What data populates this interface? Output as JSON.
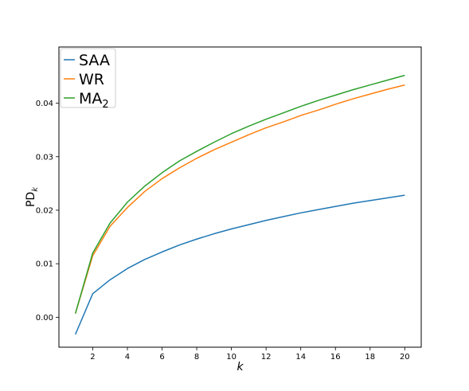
{
  "chart_data": {
    "type": "line",
    "title": "",
    "xlabel": "k",
    "ylabel": "PD",
    "ylabel_subscript": "k",
    "xlim": [
      0.05,
      20.95
    ],
    "ylim": [
      -0.0056,
      0.0505
    ],
    "xticks": [
      2,
      4,
      6,
      8,
      10,
      12,
      14,
      16,
      18,
      20
    ],
    "yticks": [
      0.0,
      0.01,
      0.02,
      0.03,
      0.04
    ],
    "ytick_labels": [
      "0.00",
      "0.01",
      "0.02",
      "0.03",
      "0.04"
    ],
    "grid": false,
    "legend_position": "top-left",
    "x": [
      1,
      2,
      3,
      4,
      5,
      6,
      7,
      8,
      9,
      10,
      11,
      12,
      13,
      14,
      15,
      16,
      17,
      18,
      19,
      20
    ],
    "series": [
      {
        "name": "SAA",
        "color": "#1f77b4",
        "values": [
          -0.0032,
          0.0044,
          0.007,
          0.0091,
          0.0108,
          0.0122,
          0.0135,
          0.0146,
          0.0156,
          0.0165,
          0.0173,
          0.0181,
          0.0188,
          0.0195,
          0.0201,
          0.0207,
          0.0213,
          0.0218,
          0.0223,
          0.0228
        ]
      },
      {
        "name": "WR",
        "color": "#ff7f0e",
        "values": [
          0.0007,
          0.0115,
          0.017,
          0.0205,
          0.0235,
          0.0259,
          0.0279,
          0.0297,
          0.0313,
          0.0327,
          0.0341,
          0.0354,
          0.0365,
          0.0377,
          0.0387,
          0.0398,
          0.0408,
          0.0417,
          0.0426,
          0.0434
        ]
      },
      {
        "name": "MA",
        "name_subscript": "2",
        "color": "#2ca02c",
        "values": [
          0.0007,
          0.012,
          0.0176,
          0.0215,
          0.0245,
          0.027,
          0.0292,
          0.031,
          0.0327,
          0.0343,
          0.0357,
          0.037,
          0.0382,
          0.0394,
          0.0405,
          0.0415,
          0.0425,
          0.0434,
          0.0443,
          0.0452
        ]
      }
    ]
  }
}
